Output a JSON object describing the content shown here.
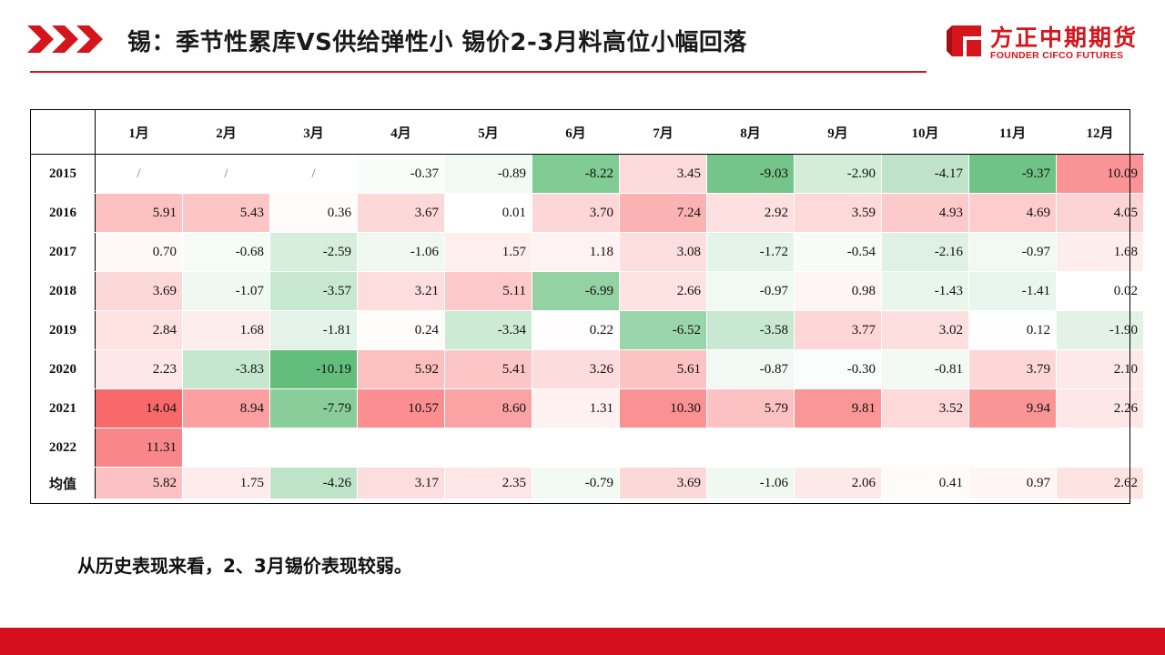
{
  "header": {
    "title": "锡：季节性累库VS供给弹性小 锡价2-3月料高位小幅回落",
    "logo_cn": "方正中期期货",
    "logo_en": "FOUNDER CIFCO FUTURES"
  },
  "conclusion": "从历史表现来看，2、3月锡价表现较弱。",
  "colors": {
    "accent_red": "#d4161c",
    "heat_positive": "#f8696b",
    "heat_negative": "#63be7b",
    "heat_neutral": "#ffffff"
  },
  "chart_data": {
    "type": "heatmap",
    "title": "",
    "columns": [
      "1月",
      "2月",
      "3月",
      "4月",
      "5月",
      "6月",
      "7月",
      "8月",
      "9月",
      "10月",
      "11月",
      "12月"
    ],
    "rows": [
      {
        "label": "2015",
        "values": [
          "/",
          "/",
          "/",
          "-0.37",
          "-0.89",
          "-8.22",
          "3.45",
          "-9.03",
          "-2.90",
          "-4.17",
          "-9.37",
          "10.09"
        ]
      },
      {
        "label": "2016",
        "values": [
          "5.91",
          "5.43",
          "0.36",
          "3.67",
          "0.01",
          "3.70",
          "7.24",
          "2.92",
          "3.59",
          "4.93",
          "4.69",
          "4.05"
        ]
      },
      {
        "label": "2017",
        "values": [
          "0.70",
          "-0.68",
          "-2.59",
          "-1.06",
          "1.57",
          "1.18",
          "3.08",
          "-1.72",
          "-0.54",
          "-2.16",
          "-0.97",
          "1.68"
        ]
      },
      {
        "label": "2018",
        "values": [
          "3.69",
          "-1.07",
          "-3.57",
          "3.21",
          "5.11",
          "-6.99",
          "2.66",
          "-0.97",
          "0.98",
          "-1.43",
          "-1.41",
          "0.02"
        ]
      },
      {
        "label": "2019",
        "values": [
          "2.84",
          "1.68",
          "-1.81",
          "0.24",
          "-3.34",
          "0.22",
          "-6.52",
          "-3.58",
          "3.77",
          "3.02",
          "0.12",
          "-1.90"
        ]
      },
      {
        "label": "2020",
        "values": [
          "2.23",
          "-3.83",
          "-10.19",
          "5.92",
          "5.41",
          "3.26",
          "5.61",
          "-0.87",
          "-0.30",
          "-0.81",
          "3.79",
          "2.10"
        ]
      },
      {
        "label": "2021",
        "values": [
          "14.04",
          "8.94",
          "-7.79",
          "10.57",
          "8.60",
          "1.31",
          "10.30",
          "5.79",
          "9.81",
          "3.52",
          "9.94",
          "2.26"
        ]
      },
      {
        "label": "2022",
        "values": [
          "11.31",
          "",
          "",
          "",
          "",
          "",
          "",
          "",
          "",
          "",
          "",
          ""
        ]
      }
    ],
    "average": {
      "label": "均值",
      "values": [
        "5.82",
        "1.75",
        "-4.26",
        "3.17",
        "2.35",
        "-0.79",
        "3.69",
        "-1.06",
        "2.06",
        "0.41",
        "0.97",
        "2.62"
      ]
    },
    "color_scale": {
      "min": -10.19,
      "max": 14.04
    }
  }
}
